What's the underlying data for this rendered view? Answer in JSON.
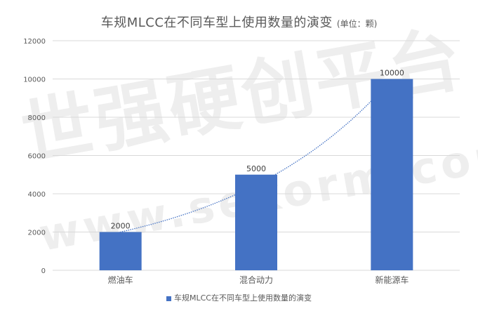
{
  "chart": {
    "title_main": "车规MLCC在不同车型上使用数量的演变",
    "title_unit": "(单位：颗)",
    "legend_label": "车规MLCC在不同车型上使用数量的演变"
  },
  "watermark": {
    "text_cn": "世强硬创平台",
    "text_url": "www.sekorm.com"
  },
  "colors": {
    "bar": "#4472C4",
    "trendline": "#4472C4",
    "grid": "#D9D9D9",
    "text": "#595959"
  },
  "chart_data": {
    "type": "bar",
    "title": "车规MLCC在不同车型上使用数量的演变",
    "unit": "(单位：颗)",
    "categories": [
      "燃油车",
      "混合动力",
      "新能源车"
    ],
    "series": [
      {
        "name": "车规MLCC在不同车型上使用数量的演变",
        "values": [
          2000,
          5000,
          10000
        ]
      }
    ],
    "data_labels": [
      "2000",
      "5000",
      "10000"
    ],
    "ylim": [
      0,
      12000
    ],
    "yticks": [
      0,
      2000,
      4000,
      6000,
      8000,
      10000,
      12000
    ],
    "grid": true,
    "legend_position": "bottom",
    "trendline": "exponential, dotted"
  }
}
